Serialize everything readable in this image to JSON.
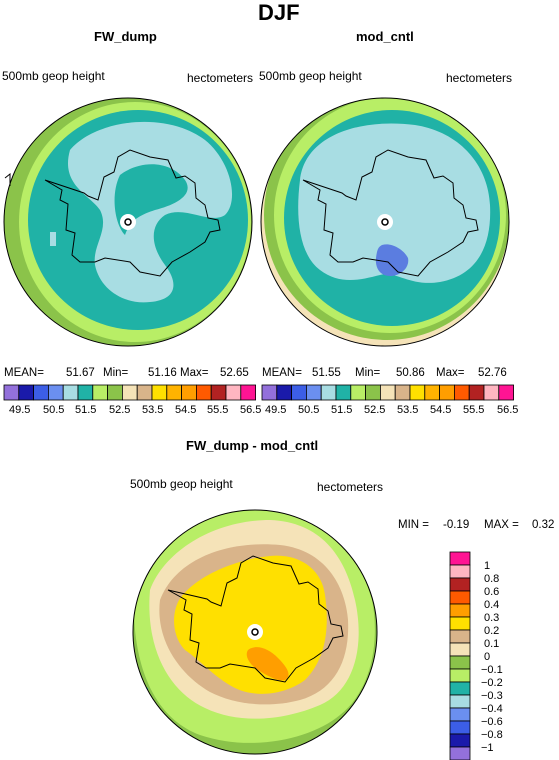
{
  "page_title": "DJF",
  "colors": {
    "c_lt_blue": "#a8dde3",
    "c_teal": "#20b2a6",
    "c_green": "#8bc34a",
    "c_lime": "#b8ee66",
    "c_tan": "#d9b48a",
    "c_cream": "#f5e3b8",
    "c_yellow": "#ffe000",
    "c_orange": "#ff9e00",
    "c_blue": "#5b7de0"
  },
  "palette": [
    "#9370db",
    "#1a1aaa",
    "#3c5ee6",
    "#6b8ff0",
    "#a8dde3",
    "#20b2a6",
    "#b8ee66",
    "#8bc34a",
    "#f5e3b8",
    "#d9b48a",
    "#ffe000",
    "#ffb300",
    "#ff9e00",
    "#ff5a00",
    "#b22222",
    "#ffb6c1",
    "#ff1493"
  ],
  "panels": [
    {
      "title": "FW_dump",
      "left_label": "500mb geop height",
      "right_label": "hectometers",
      "stats": {
        "mean_label": "MEAN=",
        "mean": "51.67",
        "min_label": "Min=",
        "min": "51.16",
        "max_label": "Max=",
        "max": "52.65"
      },
      "colorbar_ticks": [
        "49.5",
        "50.5",
        "51.5",
        "52.5",
        "53.5",
        "54.5",
        "55.5",
        "56.5"
      ]
    },
    {
      "title": "mod_cntl",
      "left_label": "500mb geop height",
      "right_label": "hectometers",
      "stats": {
        "mean_label": "MEAN=",
        "mean": "51.55",
        "min_label": "Min=",
        "min": "50.86",
        "max_label": "Max=",
        "max": "52.76"
      },
      "colorbar_ticks": [
        "49.5",
        "50.5",
        "51.5",
        "52.5",
        "53.5",
        "54.5",
        "55.5",
        "56.5"
      ]
    }
  ],
  "diff_panel": {
    "title": "FW_dump - mod_cntl",
    "left_label": "500mb geop height",
    "right_label": "hectometers",
    "stats": {
      "min_label": "MIN =",
      "min": "-0.19",
      "max_label": "MAX =",
      "max": "0.32"
    },
    "colorbar_levels": [
      "1",
      "0.8",
      "0.6",
      "0.4",
      "0.3",
      "0.2",
      "0.1",
      "0",
      "−0.1",
      "−0.2",
      "−0.3",
      "−0.4",
      "−0.6",
      "−0.8",
      "−1"
    ],
    "colorbar_colors": [
      "#ff1493",
      "#ffb6c1",
      "#b22222",
      "#ff5a00",
      "#ff9e00",
      "#ffe000",
      "#d9b48a",
      "#f5e3b8",
      "#8bc34a",
      "#b8ee66",
      "#20b2a6",
      "#a8dde3",
      "#6b8ff0",
      "#3c5ee6",
      "#1a1aaa",
      "#9370db"
    ]
  }
}
